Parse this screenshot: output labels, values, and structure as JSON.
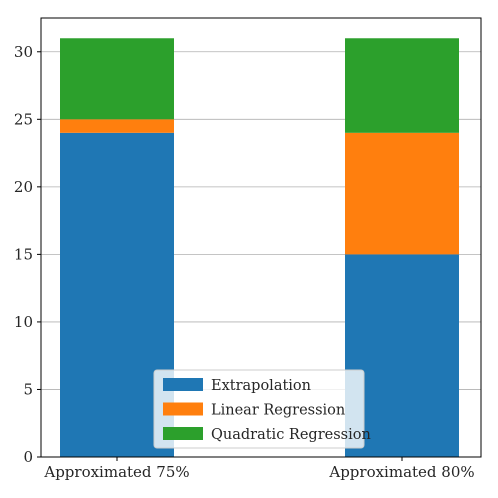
{
  "chart_data": {
    "type": "bar",
    "stacked": true,
    "categories": [
      "Approximated 75%",
      "Approximated 80%"
    ],
    "series": [
      {
        "name": "Extrapolation",
        "values": [
          24,
          15
        ],
        "color": "#1f77b4"
      },
      {
        "name": "Linear Regression",
        "values": [
          1,
          9
        ],
        "color": "#ff7f0e"
      },
      {
        "name": "Quadratic Regression",
        "values": [
          6,
          7
        ],
        "color": "#2ca02c"
      }
    ],
    "title": "",
    "xlabel": "",
    "ylabel": "",
    "ylim": [
      0,
      32.5
    ],
    "yticks": [
      0,
      5,
      10,
      15,
      20,
      25,
      30
    ],
    "grid": "horizontal",
    "legend_placement": "bottom-center"
  }
}
